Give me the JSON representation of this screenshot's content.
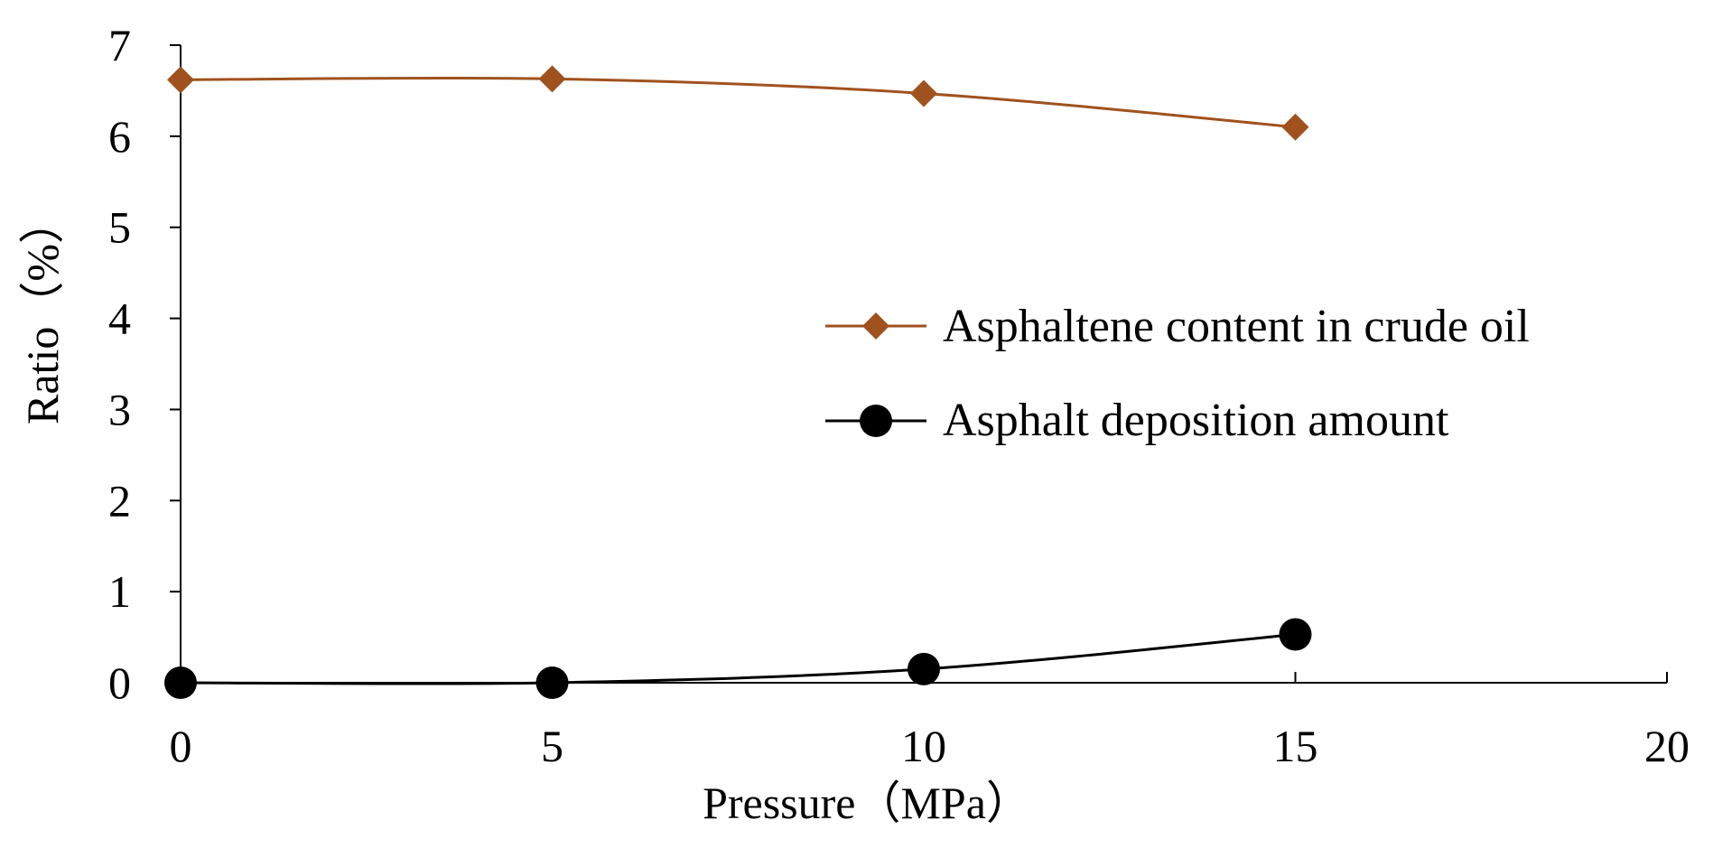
{
  "chart_data": {
    "type": "line",
    "xlabel": "Pressure（MPa）",
    "ylabel": "Ratio（%）",
    "xlim": [
      0,
      20
    ],
    "ylim": [
      0,
      7
    ],
    "xticks": [
      "0",
      "5",
      "10",
      "15",
      "20"
    ],
    "yticks": [
      "0",
      "1",
      "2",
      "3",
      "4",
      "5",
      "6",
      "7"
    ],
    "grid": false,
    "legend_position": "right",
    "x": [
      0,
      5,
      10,
      15
    ],
    "series": [
      {
        "name": "Asphaltene content in crude oil",
        "values": [
          6.62,
          6.63,
          6.47,
          6.1
        ],
        "color": "#A0521E",
        "marker": "diamond"
      },
      {
        "name": "Asphalt deposition amount",
        "values": [
          0.0,
          0.0,
          0.15,
          0.53
        ],
        "color": "#000000",
        "marker": "circle"
      }
    ]
  }
}
